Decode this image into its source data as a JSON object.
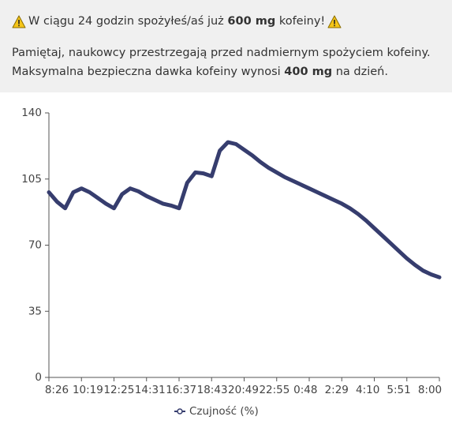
{
  "banner": {
    "alert": {
      "text_before": "W ciągu 24 godzin spożyłeś/aś już",
      "amount": "600 mg",
      "text_after": "kofeiny!"
    },
    "note": {
      "line1": "Pamiętaj, naukowcy przestrzegają przed nadmiernym spożyciem kofeiny.",
      "line2_before": "Maksymalna bezpieczna dawka kofeiny wynosi",
      "amount": "400 mg",
      "line2_after": "na dzień."
    }
  },
  "chart_data": {
    "type": "line",
    "categories": [
      "8:26",
      null,
      null,
      null,
      "10:19",
      null,
      null,
      null,
      "12:25",
      null,
      null,
      null,
      "14:31",
      null,
      null,
      null,
      "16:37",
      null,
      null,
      null,
      "18:43",
      null,
      null,
      null,
      "20:49",
      null,
      null,
      null,
      "22:55",
      null,
      null,
      null,
      "0:48",
      null,
      null,
      null,
      "2:29",
      null,
      null,
      null,
      "4:10",
      null,
      null,
      null,
      "5:51",
      null,
      null,
      null,
      "8:00"
    ],
    "series": [
      {
        "name": "Czujność (%)",
        "color": "#363d6e",
        "values": [
          98,
          93,
          89.5,
          98,
          100,
          98,
          95,
          92,
          89.5,
          97,
          100,
          98.5,
          96,
          94,
          92,
          91,
          89.5,
          103,
          108.5,
          108,
          106.5,
          120,
          124.5,
          123.5,
          120.5,
          117.5,
          114,
          111,
          108.5,
          106,
          104,
          102,
          100,
          98,
          96,
          94,
          92,
          89.5,
          86.5,
          83,
          79,
          75,
          71,
          67,
          63,
          59.5,
          56.5,
          54.5,
          53
        ]
      }
    ],
    "ylim": [
      0,
      140
    ],
    "yticks": [
      0,
      35,
      70,
      105,
      140
    ],
    "grid": false,
    "legend": "bottom"
  }
}
